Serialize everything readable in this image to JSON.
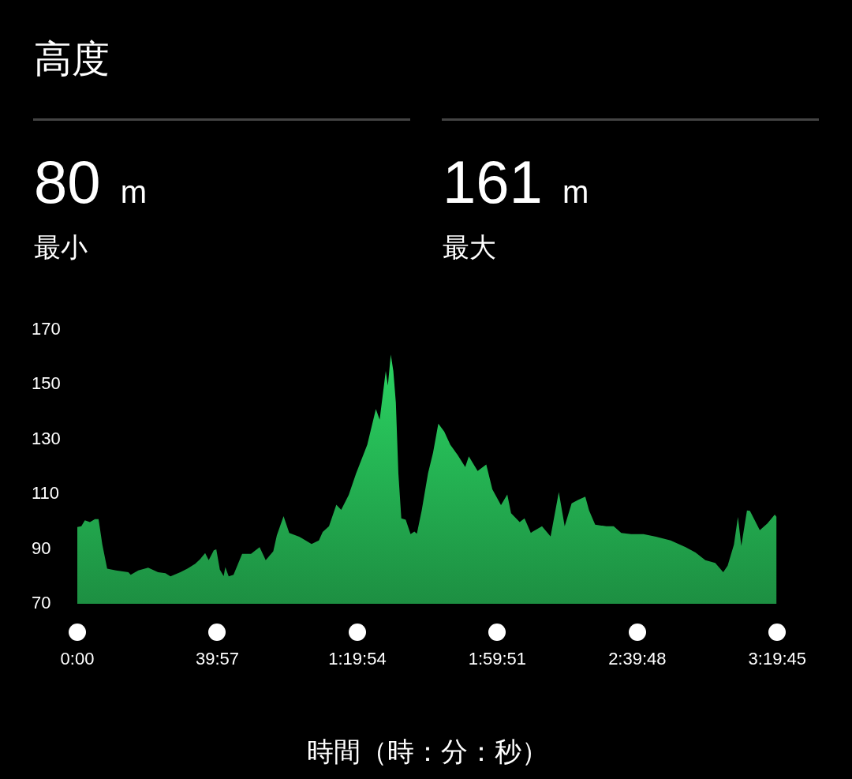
{
  "chart_data": {
    "type": "area",
    "title": "高度",
    "xlabel": "時間（時：分：秒）",
    "annotations": [
      "80 m",
      "最小",
      "161 m",
      "最大"
    ],
    "xlim": [
      0,
      199.75
    ],
    "xticks": [
      {
        "value": 0,
        "label": "0:00"
      },
      {
        "value": 39.95,
        "label": "39:57"
      },
      {
        "value": 79.9,
        "label": "1:19:54"
      },
      {
        "value": 119.85,
        "label": "1:59:51"
      },
      {
        "value": 159.8,
        "label": "2:39:48"
      },
      {
        "value": 199.75,
        "label": "3:19:45"
      }
    ],
    "ylim": [
      70,
      170
    ],
    "yticks": [
      70,
      90,
      110,
      130,
      150,
      170
    ],
    "grid": false,
    "legend": false,
    "marker": "none",
    "series": [
      {
        "color": "#22a84e",
        "x": [
          0,
          1.14,
          2.16,
          3.6,
          5.04,
          6.06,
          7.14,
          8.52,
          11.04,
          14.58,
          15.24,
          17.4,
          20.22,
          23.04,
          25.14,
          26.58,
          29.4,
          31.5,
          33.66,
          35.04,
          36.48,
          37.5,
          38.94,
          39.66,
          40.68,
          41.76,
          42.24,
          43.2,
          44.58,
          47.04,
          49.56,
          52.02,
          53.76,
          55.92,
          56.94,
          58.86,
          60.48,
          63.3,
          64.02,
          66.84,
          68.94,
          70.02,
          71.82,
          73.92,
          75.3,
          77.46,
          79.56,
          82.74,
          85.2,
          86.28,
          88.02,
          88.62,
          89.46,
          90.18,
          90.9,
          91.62,
          92.46,
          93.72,
          95.1,
          96.18,
          96.9,
          98.28,
          100.08,
          101.52,
          103.02,
          104.7,
          106.44,
          108.54,
          110.7,
          111.72,
          114.24,
          116.7,
          118.44,
          120.9,
          122.7,
          123.78,
          126.24,
          127.62,
          129.42,
          129.78,
          132.6,
          135.06,
          137.4,
          139.08,
          141.06,
          142.86,
          144.96,
          146.04,
          147.78,
          150.96,
          153.06,
          155.22,
          158.04,
          161.58,
          165.12,
          169.32,
          173.58,
          176.4,
          179.22,
          182.04,
          184.32,
          185.58,
          187.38,
          188.52,
          189.48,
          191.1,
          191.94,
          194.76,
          196.92,
          199.02,
          199.56
        ],
        "values": [
          98,
          98.3,
          100.5,
          99.8,
          100.9,
          100.9,
          91.6,
          82.8,
          82.2,
          81.5,
          80.6,
          82.2,
          83.2,
          81.5,
          81.2,
          80,
          81.5,
          82.9,
          84.6,
          86.3,
          88.5,
          85.9,
          89.5,
          89.9,
          82.5,
          80.1,
          83.4,
          80,
          80.6,
          88.2,
          88.2,
          90.7,
          85.9,
          89.2,
          95,
          102,
          95.9,
          94.5,
          94,
          91.8,
          93.1,
          96.2,
          98.3,
          106.2,
          104.3,
          109.8,
          117.6,
          128.1,
          141.1,
          137.2,
          155,
          149.7,
          161,
          155,
          143.5,
          117.6,
          101.2,
          100.7,
          95.4,
          96.4,
          95.6,
          104.1,
          117.6,
          125.2,
          135.8,
          132.9,
          128.1,
          124.3,
          119.9,
          123.8,
          118.5,
          120.9,
          111.8,
          106,
          109.9,
          103.1,
          99.8,
          101.2,
          95.9,
          96.2,
          98.3,
          94.6,
          110.8,
          98.3,
          106.7,
          107.9,
          109.1,
          104.1,
          98.9,
          98.3,
          98.3,
          95.9,
          95.4,
          95.4,
          94.5,
          93.1,
          90.7,
          88.7,
          85.9,
          84.9,
          81.5,
          83.9,
          91.6,
          101.7,
          91.1,
          104.1,
          103.9,
          96.9,
          99.3,
          102.6,
          101.7
        ]
      }
    ]
  }
}
